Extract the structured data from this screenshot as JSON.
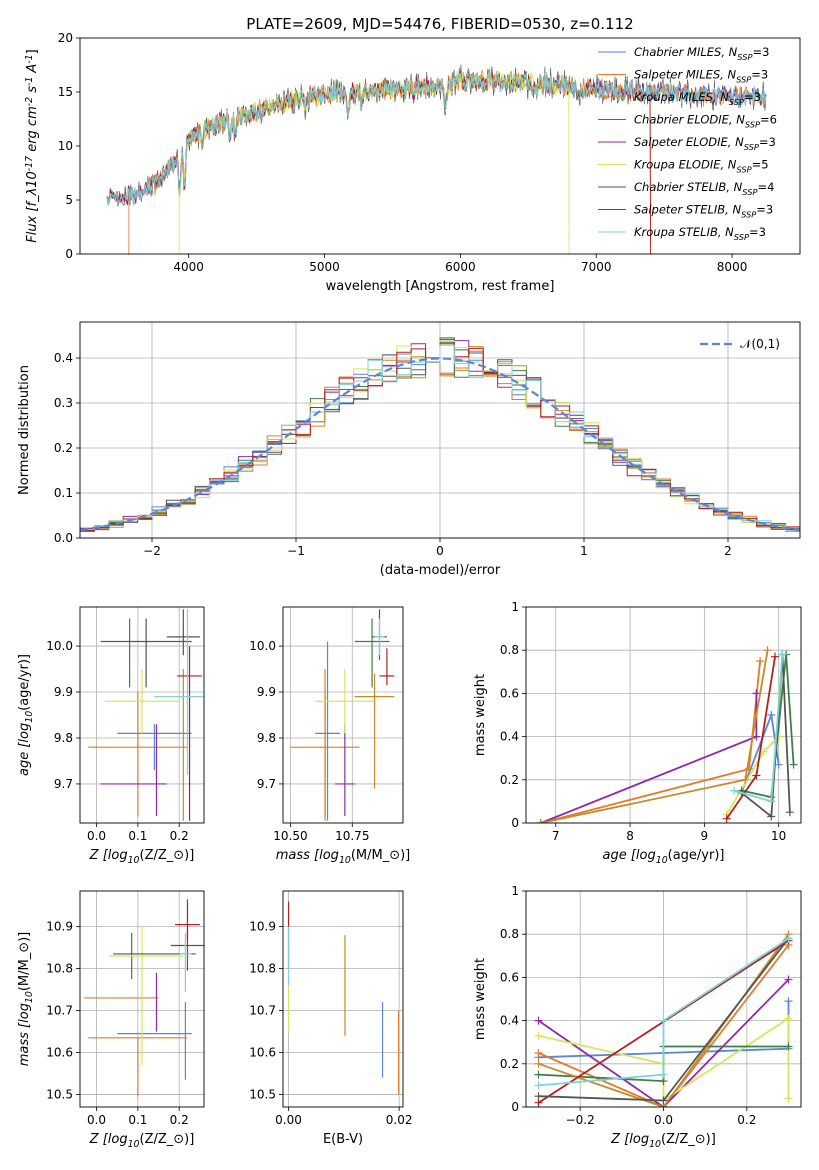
{
  "title": "PLATE=2609, MJD=54476, FIBERID=0530, z=0.112",
  "series_names": [
    "Chabrier MILES, N$_{SSP}$=3",
    "Salpeter MILES, N$_{SSP}$=3",
    "Kroupa MILES, N$_{SSP}$=3",
    "Chabrier ELODIE, N$_{SSP}$=6",
    "Salpeter ELODIE, N$_{SSP}$=3",
    "Kroupa ELODIE, N$_{SSP}$=5",
    "Chabrier STELIB, N$_{SSP}$=4",
    "Salpeter STELIB, N$_{SSP}$=3",
    "Kroupa STELIB, N$_{SSP}$=3"
  ],
  "colors": [
    "#5b86d6",
    "#e07c2a",
    "#c88a2a",
    "#3f7e4c",
    "#8e2aa6",
    "#d6e65a",
    "#555555",
    "#b22020",
    "#7fd3d8"
  ],
  "chart_data": [
    {
      "id": "spectrum",
      "type": "line",
      "title": "PLATE=2609, MJD=54476, FIBERID=0530, z=0.112",
      "xlabel": "wavelength [Angstrom, rest frame]",
      "ylabel": "Flux [f$_\\lambda$10$^{-17}$ erg cm$^{-2}$ s$^{-1}$ A$^{-1}$]",
      "xlim": [
        3200,
        8500
      ],
      "ylim": [
        0,
        20
      ],
      "xticks": [
        4000,
        5000,
        6000,
        7000,
        8000
      ],
      "yticks": [
        0,
        5,
        10,
        15,
        20
      ],
      "grid": false,
      "legend": "upper right",
      "continuum_anchors": [
        [
          3400,
          5.2
        ],
        [
          3600,
          5.5
        ],
        [
          3750,
          6.5
        ],
        [
          3900,
          8.5
        ],
        [
          4000,
          10.5
        ],
        [
          4100,
          11.5
        ],
        [
          4300,
          12.5
        ],
        [
          4500,
          13.2
        ],
        [
          4800,
          14.5
        ],
        [
          5000,
          14.8
        ],
        [
          5200,
          15.0
        ],
        [
          5500,
          15.3
        ],
        [
          5800,
          15.4
        ],
        [
          6000,
          16.0
        ],
        [
          6300,
          16.0
        ],
        [
          6600,
          15.8
        ],
        [
          7000,
          15.3
        ],
        [
          7400,
          15.0
        ],
        [
          7800,
          14.7
        ],
        [
          8250,
          14.5
        ]
      ],
      "absorption_features": [
        [
          3934,
          -3.5
        ],
        [
          3969,
          -3.0
        ],
        [
          4102,
          -1.0
        ],
        [
          4305,
          -1.5
        ],
        [
          4340,
          -1.0
        ],
        [
          4861,
          -1.0
        ],
        [
          5175,
          -2.0
        ],
        [
          5270,
          -1.0
        ],
        [
          5892,
          -2.0
        ],
        [
          6563,
          -1.0
        ],
        [
          6870,
          -1.5
        ]
      ],
      "cutoffs": [
        {
          "series": 1,
          "x": 3560,
          "side": "start"
        },
        {
          "series": 5,
          "x": 3930,
          "side": "start"
        },
        {
          "series": 5,
          "x": 6800,
          "side": "end"
        },
        {
          "series": 7,
          "x": 7400,
          "side": "end"
        },
        {
          "series": 2,
          "x": 7400,
          "side": "end"
        }
      ],
      "series_range": [
        3400,
        8250
      ]
    },
    {
      "id": "residuals",
      "type": "histogram",
      "xlabel": "(data-model)/error",
      "ylabel": "Normed distribution",
      "xlim": [
        -2.5,
        2.5
      ],
      "ylim": [
        0,
        0.48
      ],
      "xticks": [
        -2,
        -1,
        0,
        1,
        2
      ],
      "yticks": [
        0.0,
        0.1,
        0.2,
        0.3,
        0.4
      ],
      "grid": true,
      "legend": "upper right",
      "reference_curve": {
        "name": "$\\mathcal{N}(0,1)$",
        "mean": 0,
        "sigma": 1,
        "color": "#5b86d6",
        "style": "dashed"
      },
      "bin_width": 0.1,
      "series_count": 9
    },
    {
      "id": "age_vs_Z",
      "type": "errorbar",
      "xlabel": "Z [log$_{10}$($Z/Z_\\odot$)]",
      "ylabel": "age  [log$_{10}$($age/yr$)]",
      "xlim": [
        -0.04,
        0.26
      ],
      "ylim": [
        9.615,
        10.085
      ],
      "xticks": [
        0.0,
        0.1,
        0.2
      ],
      "yticks": [
        9.7,
        9.8,
        9.9,
        10.0
      ],
      "grid": true,
      "points": [
        {
          "series": 0,
          "x": 0.14,
          "y": 9.81,
          "xerr": 0.09,
          "yerr": [
            0.08,
            0.02
          ]
        },
        {
          "series": 1,
          "x": 0.1,
          "y": 9.78,
          "xerr": 0.12,
          "yerr": [
            0.15,
            0.12
          ]
        },
        {
          "series": 2,
          "x": 0.21,
          "y": 9.8,
          "xerr": 0.0,
          "yerr": [
            0.18,
            0.15
          ]
        },
        {
          "series": 3,
          "x": 0.08,
          "y": 10.01,
          "xerr": 0.0,
          "yerr": [
            0.1,
            0.05
          ]
        },
        {
          "series": 4,
          "x": 0.09,
          "y": 9.7,
          "xerr": 0.08,
          "yerr": [
            0.0,
            0.0
          ]
        },
        {
          "series": 4,
          "x": 0.145,
          "y": 9.7,
          "xerr": 0.0,
          "yerr": [
            0.07,
            0.13
          ]
        },
        {
          "series": 5,
          "x": 0.11,
          "y": 9.88,
          "xerr": 0.09,
          "yerr": [
            0.07,
            0.07
          ]
        },
        {
          "series": 6,
          "x": 0.12,
          "y": 10.01,
          "xerr": 0.11,
          "yerr": [
            0.1,
            0.05
          ]
        },
        {
          "series": 6,
          "x": 0.21,
          "y": 10.02,
          "xerr": 0.04,
          "yerr": [
            0.04,
            0.06
          ]
        },
        {
          "series": 7,
          "x": 0.225,
          "y": 9.935,
          "xerr": 0.03,
          "yerr": [
            0.0,
            0.0
          ]
        },
        {
          "series": 7,
          "x": 0.225,
          "y": 9.93,
          "xerr": 0.0,
          "yerr": [
            0.31,
            0.07
          ]
        },
        {
          "series": 8,
          "x": 0.22,
          "y": 10.0,
          "xerr": 0.0,
          "yerr": [
            0.28,
            0.08
          ]
        },
        {
          "series": 8,
          "x": 0.21,
          "y": 9.89,
          "xerr": 0.07,
          "yerr": [
            0.0,
            0.0
          ]
        }
      ]
    },
    {
      "id": "age_vs_mass",
      "type": "errorbar",
      "xlabel": "mass [log$_{10}$($M/M_\\odot$)]",
      "ylabel": "",
      "xlim": [
        10.47,
        10.955
      ],
      "ylim": [
        9.615,
        10.085
      ],
      "xticks": [
        10.5,
        10.75
      ],
      "yticks": [
        9.7,
        9.8,
        9.9,
        10.0
      ],
      "grid": true,
      "points": [
        {
          "series": 0,
          "x": 10.65,
          "y": 9.81,
          "xerr": 0.05,
          "yerr": [
            0.19,
            0.2
          ]
        },
        {
          "series": 1,
          "x": 10.64,
          "y": 9.78,
          "xerr": 0.14,
          "yerr": [
            0.15,
            0.12
          ]
        },
        {
          "series": 2,
          "x": 10.64,
          "y": 9.8,
          "xerr": 0.0,
          "yerr": [
            0.18,
            0.15
          ]
        },
        {
          "series": 3,
          "x": 10.83,
          "y": 10.01,
          "xerr": 0.07,
          "yerr": [
            0.1,
            0.05
          ]
        },
        {
          "series": 4,
          "x": 10.72,
          "y": 9.7,
          "xerr": 0.04,
          "yerr": [
            0.07,
            0.13
          ]
        },
        {
          "series": 5,
          "x": 10.72,
          "y": 9.88,
          "xerr": 0.12,
          "yerr": [
            0.07,
            0.07
          ]
        },
        {
          "series": 6,
          "x": 10.86,
          "y": 10.02,
          "xerr": 0.03,
          "yerr": [
            0.05,
            0.06
          ]
        },
        {
          "series": 7,
          "x": 10.89,
          "y": 9.935,
          "xerr": 0.03,
          "yerr": [
            0.02,
            0.06
          ]
        },
        {
          "series": 8,
          "x": 10.86,
          "y": 10.02,
          "xerr": 0.02,
          "yerr": [
            0.04,
            0.04
          ]
        },
        {
          "series": 2,
          "x": 10.84,
          "y": 9.89,
          "xerr": 0.08,
          "yerr": [
            0.2,
            0.05
          ]
        }
      ]
    },
    {
      "id": "mass_weight_vs_age",
      "type": "line",
      "xlabel": "age  [log$_{10}$($age/yr$)]",
      "ylabel": "mass weight",
      "xlim": [
        6.6,
        10.3
      ],
      "ylim": [
        0.0,
        1.0
      ],
      "xticks": [
        7,
        8,
        9,
        10
      ],
      "yticks": [
        0.0,
        0.2,
        0.4,
        0.6,
        0.8,
        1.0
      ],
      "grid": true,
      "series": [
        {
          "series": 0,
          "points": [
            [
              9.5,
              0.14
            ],
            [
              9.9,
              0.5
            ],
            [
              10.0,
              0.27
            ]
          ]
        },
        {
          "series": 1,
          "points": [
            [
              6.8,
              0.0
            ],
            [
              9.6,
              0.25
            ],
            [
              9.75,
              0.75
            ]
          ]
        },
        {
          "series": 4,
          "points": [
            [
              6.8,
              0.0
            ],
            [
              9.7,
              0.4
            ],
            [
              9.7,
              0.6
            ]
          ]
        },
        {
          "series": 5,
          "points": [
            [
              9.3,
              0.04
            ],
            [
              9.8,
              0.33
            ],
            [
              10.0,
              0.4
            ],
            [
              10.05,
              0.78
            ]
          ]
        },
        {
          "series": 3,
          "points": [
            [
              9.5,
              0.15
            ],
            [
              9.9,
              0.12
            ],
            [
              10.1,
              0.78
            ],
            [
              10.2,
              0.27
            ]
          ]
        },
        {
          "series": 2,
          "points": [
            [
              6.8,
              0.0
            ],
            [
              9.55,
              0.2
            ],
            [
              9.85,
              0.8
            ]
          ]
        },
        {
          "series": 7,
          "points": [
            [
              9.3,
              0.02
            ],
            [
              9.7,
              0.22
            ],
            [
              9.95,
              0.77
            ]
          ]
        },
        {
          "series": 6,
          "points": [
            [
              9.5,
              0.14
            ],
            [
              9.9,
              0.03
            ],
            [
              10.05,
              0.78
            ],
            [
              10.15,
              0.05
            ]
          ]
        },
        {
          "series": 8,
          "points": [
            [
              9.4,
              0.15
            ],
            [
              9.9,
              0.1
            ],
            [
              10.05,
              0.78
            ]
          ]
        }
      ]
    },
    {
      "id": "mass_vs_Z",
      "type": "errorbar",
      "xlabel": "Z [log$_{10}$($Z/Z_\\odot$)]",
      "ylabel": "mass [log$_{10}$($M/M_\\odot$)]",
      "xlim": [
        -0.04,
        0.26
      ],
      "ylim": [
        10.47,
        10.985
      ],
      "xticks": [
        0.0,
        0.1,
        0.2
      ],
      "yticks": [
        10.5,
        10.6,
        10.7,
        10.8,
        10.9
      ],
      "grid": true,
      "points": [
        {
          "series": 0,
          "x": 0.14,
          "y": 10.645,
          "xerr": 0.09,
          "yerr": [
            0.0,
            0.0
          ]
        },
        {
          "series": 0,
          "x": 0.215,
          "y": 10.645,
          "xerr": 0.0,
          "yerr": [
            0.11,
            0.075
          ]
        },
        {
          "series": 1,
          "x": 0.1,
          "y": 10.635,
          "xerr": 0.12,
          "yerr": [
            0.14,
            0.0
          ]
        },
        {
          "series": 2,
          "x": 0.06,
          "y": 10.73,
          "xerr": 0.09,
          "yerr": [
            0.0,
            0.0
          ]
        },
        {
          "series": 3,
          "x": 0.085,
          "y": 10.835,
          "xerr": 0.0,
          "yerr": [
            0.06,
            0.05
          ]
        },
        {
          "series": 4,
          "x": 0.145,
          "y": 10.73,
          "xerr": 0.0,
          "yerr": [
            0.08,
            0.06
          ]
        },
        {
          "series": 5,
          "x": 0.11,
          "y": 10.83,
          "xerr": 0.0,
          "yerr": [
            0.26,
            0.07
          ]
        },
        {
          "series": 5,
          "x": 0.12,
          "y": 10.83,
          "xerr": 0.09,
          "yerr": [
            0.0,
            0.0
          ]
        },
        {
          "series": 6,
          "x": 0.14,
          "y": 10.835,
          "xerr": 0.1,
          "yerr": [
            0.0,
            0.0
          ]
        },
        {
          "series": 6,
          "x": 0.22,
          "y": 10.855,
          "xerr": 0.04,
          "yerr": [
            0.06,
            0.04
          ]
        },
        {
          "series": 7,
          "x": 0.22,
          "y": 10.905,
          "xerr": 0.03,
          "yerr": [
            0.04,
            0.06
          ]
        },
        {
          "series": 8,
          "x": 0.215,
          "y": 10.835,
          "xerr": 0.015,
          "yerr": [
            0.09,
            0.05
          ]
        },
        {
          "series": 2,
          "x": 0.22,
          "y": 10.83,
          "xerr": 0.0,
          "yerr": [
            0.0,
            0.0
          ]
        }
      ]
    },
    {
      "id": "mass_vs_EBV",
      "type": "errorbar",
      "xlabel": "E(B-V)",
      "ylabel": "",
      "xlim": [
        -0.001,
        0.0207
      ],
      "ylim": [
        10.47,
        10.985
      ],
      "xticks": [
        0.0,
        0.02
      ],
      "xticklabels": [
        "0.00",
        "0.02"
      ],
      "yticks": [
        10.5,
        10.6,
        10.7,
        10.8,
        10.9
      ],
      "grid": true,
      "points": [
        {
          "series": 0,
          "x": 0.017,
          "y": 10.63,
          "xerr": 0,
          "yerr": [
            0.09,
            0.09
          ]
        },
        {
          "series": 1,
          "x": 0.0199,
          "y": 10.6,
          "xerr": 0,
          "yerr": [
            0.1,
            0.1
          ]
        },
        {
          "series": 2,
          "x": 0.0102,
          "y": 10.76,
          "xerr": 0,
          "yerr": [
            0.12,
            0.12
          ]
        },
        {
          "series": 5,
          "x": 0.0,
          "y": 10.77,
          "xerr": 0,
          "yerr": [
            0.12,
            0.12
          ]
        },
        {
          "series": 7,
          "x": 0.0,
          "y": 10.88,
          "xerr": 0,
          "yerr": [
            0.08,
            0.08
          ]
        },
        {
          "series": 8,
          "x": 0.0,
          "y": 10.83,
          "xerr": 0,
          "yerr": [
            0.07,
            0.07
          ]
        }
      ]
    },
    {
      "id": "mass_weight_vs_Z",
      "type": "line",
      "xlabel": "Z [log$_{10}$($Z/Z_\\odot$)]",
      "ylabel": "mass weight",
      "xlim": [
        -0.33,
        0.33
      ],
      "ylim": [
        0.0,
        1.0
      ],
      "xticks": [
        -0.2,
        0.0,
        0.2
      ],
      "xticklabels": [
        "−0.2",
        "0.0",
        "0.2"
      ],
      "yticks": [
        0.0,
        0.2,
        0.4,
        0.6,
        0.8,
        1.0
      ],
      "grid": true,
      "series": [
        {
          "series": 0,
          "points": [
            [
              -0.3,
              0.23
            ],
            [
              0.0,
              0.25
            ],
            [
              0.3,
              0.27
            ],
            [
              0.3,
              0.49
            ]
          ]
        },
        {
          "series": 1,
          "points": [
            [
              -0.3,
              0.25
            ],
            [
              0.0,
              0.0
            ],
            [
              0.3,
              0.75
            ]
          ]
        },
        {
          "series": 4,
          "points": [
            [
              -0.3,
              0.4
            ],
            [
              0.0,
              0.0
            ],
            [
              0.3,
              0.59
            ]
          ]
        },
        {
          "series": 5,
          "points": [
            [
              -0.3,
              0.33
            ],
            [
              0.0,
              0.2
            ],
            [
              0.0,
              0.03
            ],
            [
              0.3,
              0.41
            ],
            [
              0.3,
              0.04
            ]
          ]
        },
        {
          "series": 3,
          "points": [
            [
              -0.3,
              0.15
            ],
            [
              0.0,
              0.12
            ],
            [
              0.0,
              0.28
            ],
            [
              0.3,
              0.28
            ]
          ]
        },
        {
          "series": 2,
          "points": [
            [
              -0.3,
              0.2
            ],
            [
              0.0,
              0.0
            ],
            [
              0.3,
              0.8
            ]
          ]
        },
        {
          "series": 7,
          "points": [
            [
              -0.3,
              0.02
            ],
            [
              0.3,
              0.77
            ]
          ]
        },
        {
          "series": 6,
          "points": [
            [
              -0.3,
              0.05
            ],
            [
              0.0,
              0.03
            ],
            [
              0.3,
              0.78
            ]
          ]
        },
        {
          "series": 8,
          "points": [
            [
              -0.3,
              0.1
            ],
            [
              0.0,
              0.15
            ],
            [
              0.0,
              0.4
            ],
            [
              0.3,
              0.78
            ]
          ]
        }
      ]
    }
  ]
}
